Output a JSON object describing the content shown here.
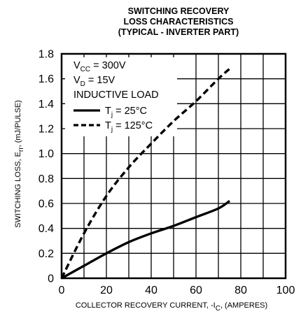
{
  "chart_data": {
    "type": "line",
    "title_lines": [
      "SWITCHING RECOVERY",
      "LOSS CHARACTERISTICS",
      "(TYPICAL - INVERTER PART)"
    ],
    "xlabel": {
      "pre": "COLLECTOR RECOVERY CURRENT, -I",
      "sub": "C",
      "post": ", (AMPERES)"
    },
    "ylabel": {
      "pre": "SWITCHING LOSS, E",
      "sub": "rr",
      "post": ", (mJ/PULSE)"
    },
    "xlim": [
      0,
      100
    ],
    "ylim": [
      0,
      1.8
    ],
    "x_ticks": [
      "0",
      "20",
      "40",
      "60",
      "80",
      "100"
    ],
    "y_ticks": [
      "0",
      "0.2",
      "0.4",
      "0.6",
      "0.8",
      "1.0",
      "1.2",
      "1.4",
      "1.6",
      "1.8"
    ],
    "x_grid_step": 10,
    "y_grid_step": 0.2,
    "grid": true,
    "conditions": [
      {
        "pre": "V",
        "sub": "CC",
        "post": " = 300V"
      },
      {
        "pre": "V",
        "sub": "D",
        "post": " = 15V"
      },
      {
        "pre": "INDUCTIVE LOAD",
        "sub": "",
        "post": ""
      }
    ],
    "series": [
      {
        "legend": {
          "pre": "T",
          "sub": "j",
          "post": " = 25°C"
        },
        "style": "solid",
        "color": "#000000",
        "x": [
          0,
          10,
          20,
          30,
          40,
          50,
          60,
          70,
          75
        ],
        "y": [
          0.0,
          0.1,
          0.2,
          0.29,
          0.36,
          0.42,
          0.49,
          0.56,
          0.62
        ]
      },
      {
        "legend": {
          "pre": "T",
          "sub": "j",
          "post": " = 125°C"
        },
        "style": "dashed",
        "color": "#000000",
        "x": [
          0,
          10,
          20,
          30,
          40,
          50,
          60,
          70,
          75
        ],
        "y": [
          0.0,
          0.36,
          0.66,
          0.89,
          1.08,
          1.26,
          1.42,
          1.6,
          1.68
        ]
      }
    ]
  }
}
